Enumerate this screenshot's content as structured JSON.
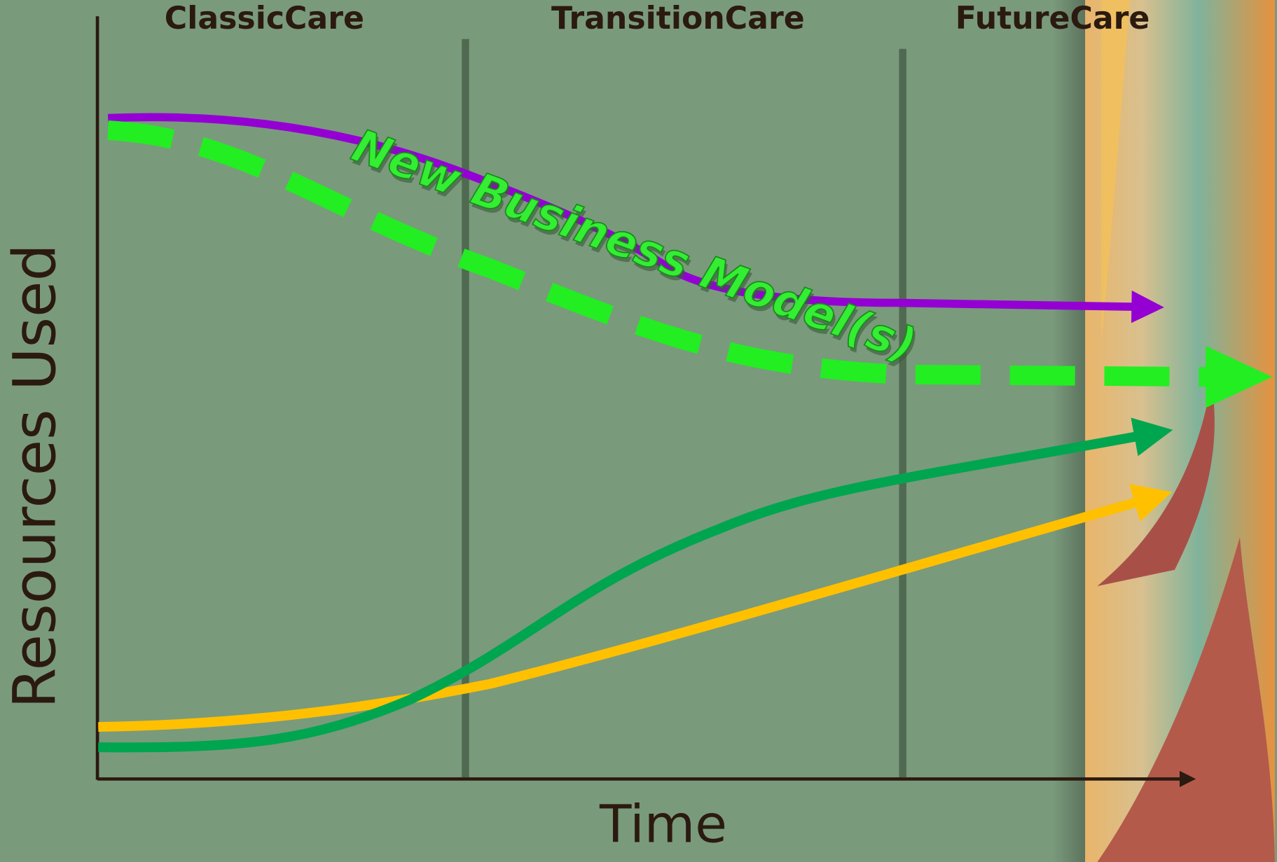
{
  "phases": [
    "ClassicCare",
    "TransitionCare",
    "FutureCare"
  ],
  "y_axis_label": "Resources Used",
  "x_axis_label": "Time",
  "annotation": "New Business Model(s)"
}
